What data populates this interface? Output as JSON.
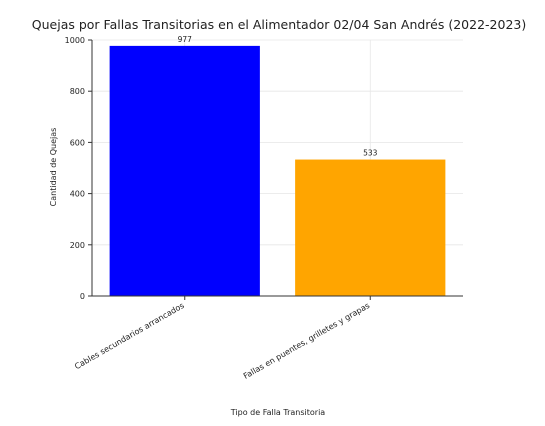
{
  "chart_data": {
    "type": "bar",
    "title": "Quejas por Fallas Transitorias en el Alimentador 02/04 San Andrés (2022-2023)",
    "xlabel": "Tipo de Falla Transitoria",
    "ylabel": "Cantidad de Quejas",
    "categories": [
      "Cables secundarios arrancados",
      "Fallas en puentes, grilletes y grapas"
    ],
    "values": [
      977,
      533
    ],
    "value_labels": [
      "977",
      "533"
    ],
    "colors": [
      "#0000ff",
      "#ffa500"
    ],
    "ylim": [
      0,
      1000
    ],
    "yticks": [
      0,
      200,
      400,
      600,
      800,
      1000
    ],
    "grid": true
  }
}
